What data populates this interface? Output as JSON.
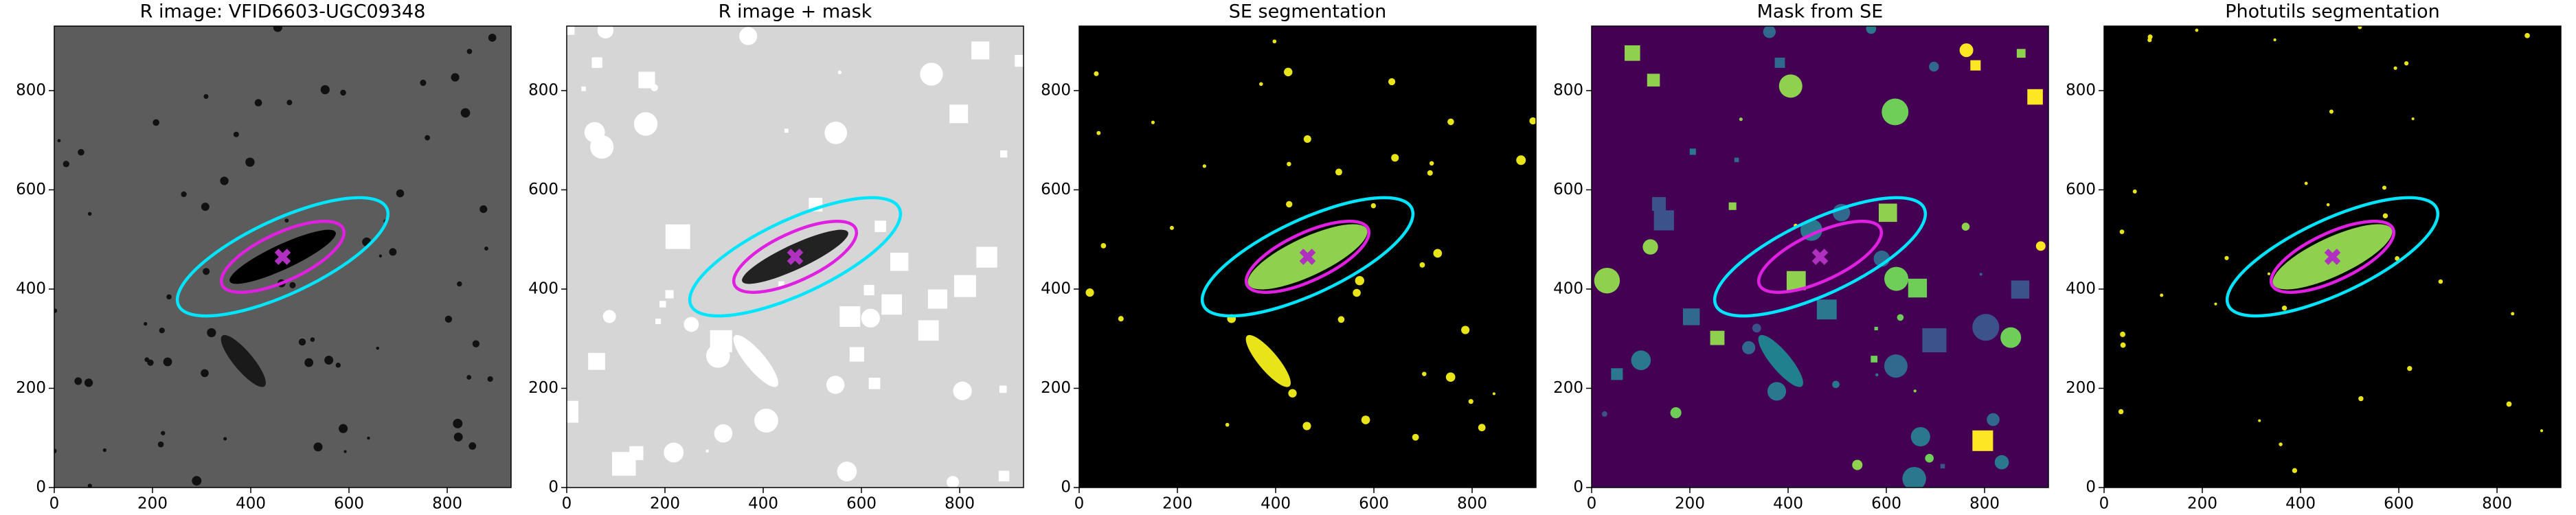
{
  "chart_data": [
    {
      "type": "image",
      "title": "R image: VFID6603-UGC09348",
      "background": "#5c5c5c",
      "xlim": [
        0,
        930
      ],
      "ylim": [
        0,
        930
      ],
      "xticks": [
        0,
        200,
        400,
        600,
        800
      ],
      "yticks": [
        0,
        200,
        400,
        600,
        800
      ],
      "ellipses": [
        {
          "color": "#00e5ff",
          "x": 465,
          "y": 465,
          "a": 234,
          "b": 75,
          "angle": 25
        },
        {
          "color": "#e020e0",
          "x": 465,
          "y": 465,
          "a": 136,
          "b": 48,
          "angle": 25
        }
      ],
      "marker": {
        "x": 465,
        "y": 465,
        "color": "#b030c0"
      }
    },
    {
      "type": "image",
      "title": "R image + mask",
      "background": "#d6d6d6",
      "xlim": [
        0,
        930
      ],
      "ylim": [
        0,
        930
      ],
      "xticks": [
        0,
        200,
        400,
        600,
        800
      ],
      "yticks": [
        0,
        200,
        400,
        600,
        800
      ],
      "ellipses": [
        {
          "color": "#00e5ff",
          "x": 465,
          "y": 465,
          "a": 234,
          "b": 75,
          "angle": 25
        },
        {
          "color": "#e020e0",
          "x": 465,
          "y": 465,
          "a": 136,
          "b": 48,
          "angle": 25
        }
      ],
      "marker": {
        "x": 465,
        "y": 465,
        "color": "#b030c0"
      }
    },
    {
      "type": "image",
      "title": "SE segmentation",
      "background": "#000000",
      "xlim": [
        0,
        930
      ],
      "ylim": [
        0,
        930
      ],
      "xticks": [
        0,
        200,
        400,
        600,
        800
      ],
      "yticks": [
        0,
        200,
        400,
        600,
        800
      ],
      "ellipses": [
        {
          "color": "#00e5ff",
          "x": 465,
          "y": 465,
          "a": 234,
          "b": 75,
          "angle": 25
        },
        {
          "color": "#e020e0",
          "x": 465,
          "y": 465,
          "a": 136,
          "b": 48,
          "angle": 25
        }
      ],
      "marker": {
        "x": 465,
        "y": 465,
        "color": "#b030c0"
      }
    },
    {
      "type": "image",
      "title": "Mask from SE",
      "background": "#440154",
      "xlim": [
        0,
        930
      ],
      "ylim": [
        0,
        930
      ],
      "xticks": [
        0,
        200,
        400,
        600,
        800
      ],
      "yticks": [
        0,
        200,
        400,
        600,
        800
      ],
      "ellipses": [
        {
          "color": "#00e5ff",
          "x": 465,
          "y": 465,
          "a": 234,
          "b": 75,
          "angle": 25
        },
        {
          "color": "#e020e0",
          "x": 465,
          "y": 465,
          "a": 136,
          "b": 48,
          "angle": 25
        }
      ],
      "marker": {
        "x": 465,
        "y": 465,
        "color": "#b030c0"
      }
    },
    {
      "type": "image",
      "title": "Photutils segmentation",
      "background": "#000000",
      "xlim": [
        0,
        930
      ],
      "ylim": [
        0,
        930
      ],
      "xticks": [
        0,
        200,
        400,
        600,
        800
      ],
      "yticks": [
        0,
        200,
        400,
        600,
        800
      ],
      "ellipses": [
        {
          "color": "#00e5ff",
          "x": 465,
          "y": 465,
          "a": 234,
          "b": 75,
          "angle": 25
        },
        {
          "color": "#e020e0",
          "x": 465,
          "y": 465,
          "a": 136,
          "b": 48,
          "angle": 25
        }
      ],
      "marker": {
        "x": 465,
        "y": 465,
        "color": "#b030c0"
      }
    }
  ]
}
